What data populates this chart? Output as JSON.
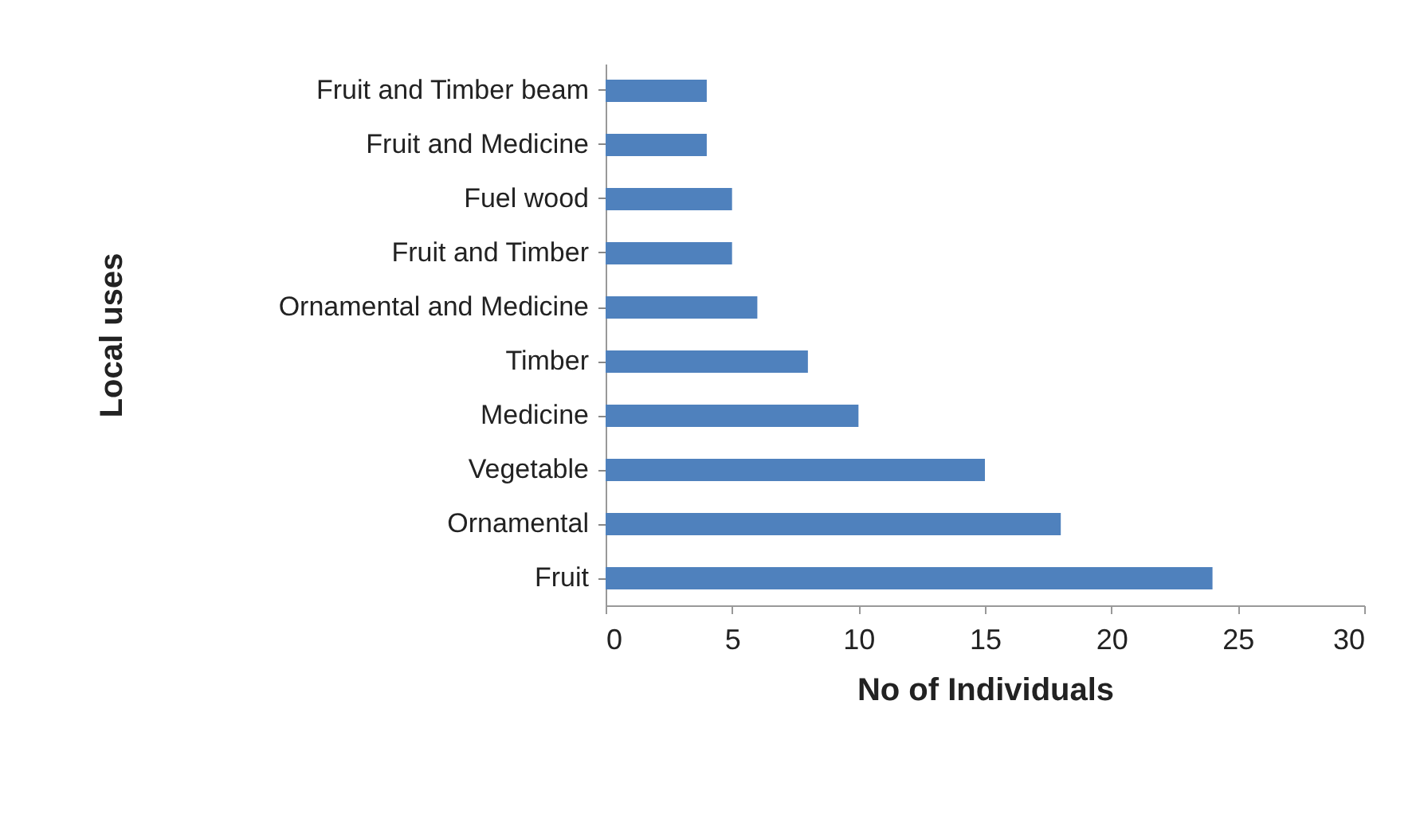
{
  "chart_data": {
    "type": "bar",
    "orientation": "horizontal",
    "xlabel": "No of Individuals",
    "ylabel": "Local uses",
    "categories": [
      "Fruit and Timber beam",
      "Fruit and Medicine",
      "Fuel wood",
      "Fruit and Timber",
      "Ornamental and Medicine",
      "Timber",
      "Medicine",
      "Vegetable",
      "Ornamental",
      "Fruit"
    ],
    "values": [
      4,
      4,
      5,
      5,
      6,
      8,
      10,
      15,
      18,
      24
    ],
    "color": "#4f81bd",
    "xlim": [
      0,
      30
    ],
    "xticks": [
      0,
      5,
      10,
      15,
      20,
      25,
      30
    ],
    "grid": false
  }
}
